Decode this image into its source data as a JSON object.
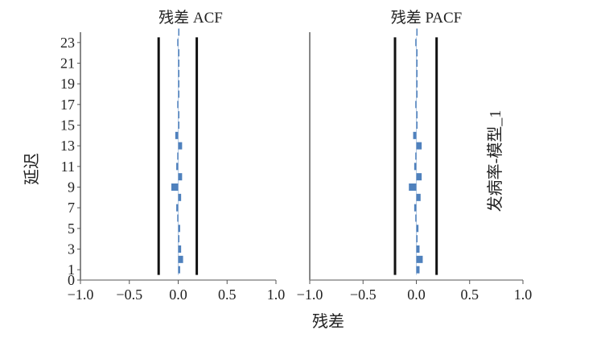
{
  "figure": {
    "x_axis_title": "残差",
    "y_axis_title": "延迟",
    "side_label": "发病率-模型_1"
  },
  "chart_data": [
    {
      "type": "bar",
      "orientation": "horizontal",
      "title": "残差 ACF",
      "xlabel": "残差",
      "ylabel": "延迟",
      "xlim": [
        -1.0,
        1.0
      ],
      "ylim": [
        0,
        24
      ],
      "x_ticks": [
        "−1.0",
        "−0.5",
        "0.0",
        "0.5",
        "1.0"
      ],
      "y_ticks": [
        "0",
        "1",
        "3",
        "5",
        "7",
        "9",
        "11",
        "13",
        "15",
        "17",
        "19",
        "21",
        "23"
      ],
      "confidence_limits": [
        -0.2,
        0.19
      ],
      "lags": [
        1,
        2,
        3,
        4,
        5,
        6,
        7,
        8,
        9,
        10,
        11,
        12,
        13,
        14,
        15,
        16,
        17,
        18,
        19,
        20,
        21,
        22,
        23,
        24
      ],
      "values": [
        0.02,
        0.05,
        0.03,
        0.0,
        0.02,
        -0.01,
        -0.02,
        0.03,
        -0.07,
        0.04,
        -0.02,
        -0.01,
        0.04,
        -0.03,
        0.0,
        0.0,
        -0.01,
        0.0,
        0.0,
        0.0,
        0.01,
        0.0,
        -0.01,
        0.0
      ],
      "bar_color": "#4f81bd",
      "grid": false
    },
    {
      "type": "bar",
      "orientation": "horizontal",
      "title": "残差 PACF",
      "xlabel": "残差",
      "ylabel": "延迟",
      "xlim": [
        -1.0,
        1.0
      ],
      "ylim": [
        0,
        24
      ],
      "x_ticks": [
        "−1.0",
        "−0.5",
        "0.0",
        "0.5",
        "1.0"
      ],
      "confidence_limits": [
        -0.2,
        0.19
      ],
      "lags": [
        1,
        2,
        3,
        4,
        5,
        6,
        7,
        8,
        9,
        10,
        11,
        12,
        13,
        14,
        15,
        16,
        17,
        18,
        19,
        20,
        21,
        22,
        23,
        24
      ],
      "values": [
        0.03,
        0.06,
        0.03,
        0.0,
        0.02,
        -0.01,
        -0.02,
        0.04,
        -0.07,
        0.05,
        -0.02,
        -0.01,
        0.05,
        -0.03,
        0.0,
        0.0,
        -0.01,
        0.0,
        0.0,
        0.0,
        0.01,
        0.0,
        -0.01,
        0.0
      ],
      "bar_color": "#4f81bd",
      "grid": false
    }
  ]
}
